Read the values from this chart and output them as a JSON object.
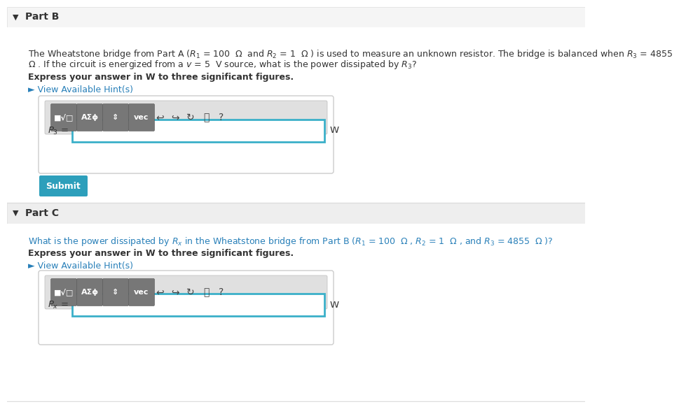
{
  "white": "#ffffff",
  "light_gray_header": "#f0f0f0",
  "body_bg": "#ffffff",
  "part_c_header_bg": "#eeeeee",
  "text_color": "#333333",
  "bold_text_color": "#222222",
  "hint_color": "#2980b9",
  "teal_text": "#2980b9",
  "input_border_color": "#3bb0c9",
  "submit_bg": "#2d9fbb",
  "submit_text_color": "#ffffff",
  "toolbar_outer_bg": "#f0f0f0",
  "toolbar_inner_bg": "#e0e0e0",
  "btn_bg": "#777777",
  "btn_edge": "#555555",
  "outer_box_edge": "#cccccc",
  "divider_color": "#dddddd",
  "part_b_header_bg": "#f5f5f5",
  "part_b_text_line1": "The Wheatstone bridge from Part A ($R_1$ = 100  Ω  and $R_2$ = 1  Ω ) is used to measure an unknown resistor. The bridge is balanced when $R_3$ = 4855",
  "part_b_text_line2": "Ω . If the circuit is energized from a $v$ = 5  V source, what is the power dissipated by $R_3$?",
  "express_text": "Express your answer in W to three significant figures.",
  "hint_text": "► View Available Hint(s)",
  "submit_text": "Submit",
  "part_c_text_line1": "What is the power dissipated by $R_x$ in the Wheatstone bridge from Part B ($R_1$ = 100  Ω , $R_2$ = 1  Ω , and $R_3$ = 4855  Ω )?",
  "toolbar_icons": [
    "↩",
    "↪",
    "↻",
    "⎙",
    "?"
  ],
  "btn_labels": [
    "■√□",
    "AΣϕ",
    "⇕",
    "vec"
  ],
  "part_b_title": "Part B",
  "part_c_title": "Part C"
}
